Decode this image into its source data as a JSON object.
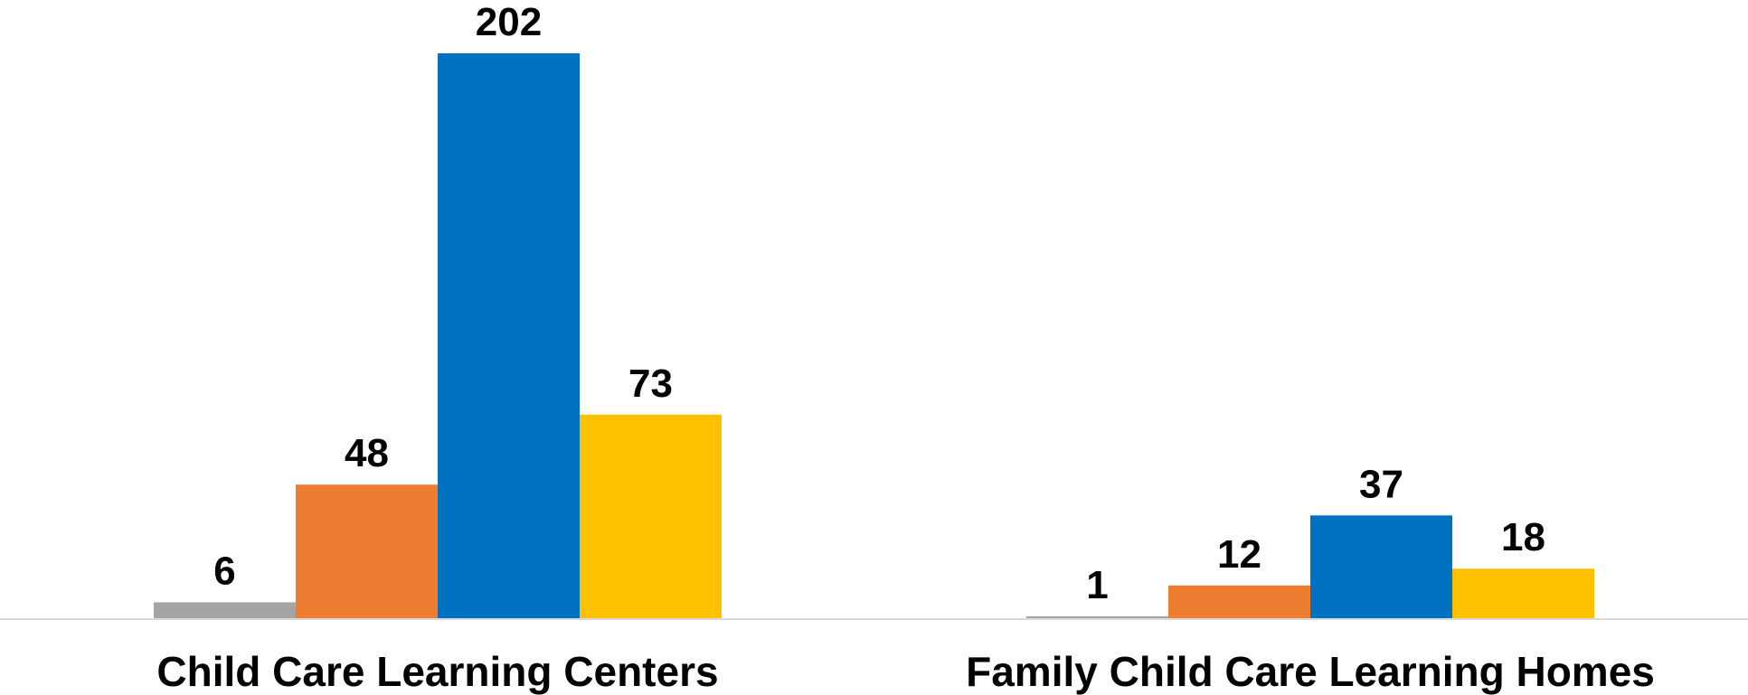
{
  "chart_data": {
    "type": "bar",
    "categories": [
      "Child Care Learning Centers",
      "Family Child Care Learning Homes"
    ],
    "series": [
      {
        "values": [
          6,
          1
        ],
        "color": "#A5A5A5"
      },
      {
        "values": [
          48,
          12
        ],
        "color": "#ED7D31"
      },
      {
        "values": [
          202,
          37
        ],
        "color": "#0070C0"
      },
      {
        "values": [
          73,
          18
        ],
        "color": "#FFC000"
      }
    ],
    "axis_color": "#D9D9D9",
    "grid": false,
    "legend": "none"
  }
}
